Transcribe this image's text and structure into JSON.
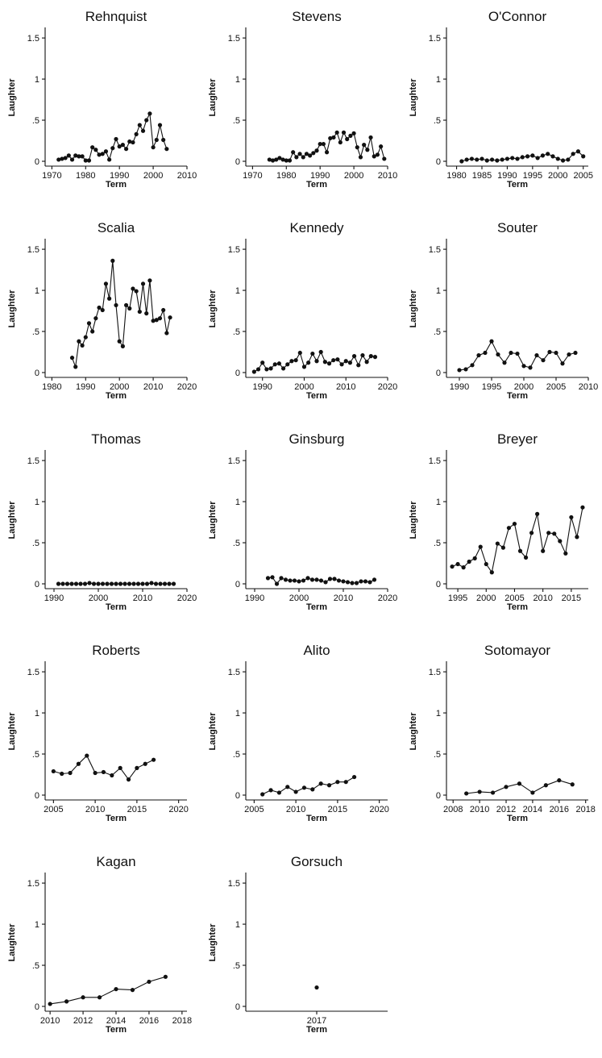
{
  "chart_data": [
    {
      "type": "line",
      "title": "Rehnquist",
      "xlabel": "Term",
      "ylabel": "Laughter",
      "xlim": [
        1968,
        2010
      ],
      "ylim": [
        0,
        1.55
      ],
      "xticks": [
        1970,
        1980,
        1990,
        2000,
        2010
      ],
      "yticks": [
        0,
        0.5,
        1,
        1.5
      ],
      "ytick_labels": [
        "0",
        ".5",
        "1",
        "1.5"
      ],
      "x": [
        1972,
        1973,
        1974,
        1975,
        1976,
        1977,
        1978,
        1979,
        1980,
        1981,
        1982,
        1983,
        1984,
        1985,
        1986,
        1987,
        1988,
        1989,
        1990,
        1991,
        1992,
        1993,
        1994,
        1995,
        1996,
        1997,
        1998,
        1999,
        2000,
        2001,
        2002,
        2003,
        2004
      ],
      "y": [
        0.02,
        0.03,
        0.04,
        0.07,
        0.02,
        0.07,
        0.06,
        0.06,
        0.01,
        0.01,
        0.17,
        0.14,
        0.08,
        0.09,
        0.12,
        0.02,
        0.16,
        0.27,
        0.18,
        0.2,
        0.15,
        0.24,
        0.23,
        0.33,
        0.44,
        0.37,
        0.5,
        0.58,
        0.17,
        0.26,
        0.44,
        0.26,
        0.15
      ]
    },
    {
      "type": "line",
      "title": "Stevens",
      "xlabel": "Term",
      "ylabel": "Laughter",
      "xlim": [
        1968,
        2010
      ],
      "ylim": [
        0,
        1.55
      ],
      "xticks": [
        1970,
        1980,
        1990,
        2000,
        2010
      ],
      "yticks": [
        0,
        0.5,
        1,
        1.5
      ],
      "ytick_labels": [
        "0",
        ".5",
        "1",
        "1.5"
      ],
      "x": [
        1975,
        1976,
        1977,
        1978,
        1979,
        1980,
        1981,
        1982,
        1983,
        1984,
        1985,
        1986,
        1987,
        1988,
        1989,
        1990,
        1991,
        1992,
        1993,
        1994,
        1995,
        1996,
        1997,
        1998,
        1999,
        2000,
        2001,
        2002,
        2003,
        2004,
        2005,
        2006,
        2007,
        2008,
        2009
      ],
      "y": [
        0.02,
        0.01,
        0.02,
        0.04,
        0.02,
        0.01,
        0.01,
        0.11,
        0.05,
        0.09,
        0.05,
        0.09,
        0.07,
        0.1,
        0.13,
        0.21,
        0.21,
        0.11,
        0.28,
        0.29,
        0.35,
        0.23,
        0.35,
        0.27,
        0.31,
        0.34,
        0.17,
        0.05,
        0.2,
        0.14,
        0.29,
        0.06,
        0.08,
        0.18,
        0.03
      ]
    },
    {
      "type": "line",
      "title": "O'Connor",
      "xlabel": "Term",
      "ylabel": "Laughter",
      "xlim": [
        1978,
        2006
      ],
      "ylim": [
        0,
        1.55
      ],
      "xticks": [
        1980,
        1985,
        1990,
        1995,
        2000,
        2005
      ],
      "yticks": [
        0,
        0.5,
        1,
        1.5
      ],
      "ytick_labels": [
        "0",
        ".5",
        "1",
        "1.5"
      ],
      "x": [
        1981,
        1982,
        1983,
        1984,
        1985,
        1986,
        1987,
        1988,
        1989,
        1990,
        1991,
        1992,
        1993,
        1994,
        1995,
        1996,
        1997,
        1998,
        1999,
        2000,
        2001,
        2002,
        2003,
        2004,
        2005
      ],
      "y": [
        0.0,
        0.02,
        0.03,
        0.02,
        0.03,
        0.01,
        0.02,
        0.01,
        0.02,
        0.03,
        0.04,
        0.03,
        0.05,
        0.06,
        0.07,
        0.04,
        0.07,
        0.09,
        0.06,
        0.03,
        0.01,
        0.02,
        0.09,
        0.12,
        0.06
      ]
    },
    {
      "type": "line",
      "title": "Scalia",
      "xlabel": "Term",
      "ylabel": "Laughter",
      "xlim": [
        1978,
        2020
      ],
      "ylim": [
        0,
        1.55
      ],
      "xticks": [
        1980,
        1990,
        2000,
        2010,
        2020
      ],
      "yticks": [
        0,
        0.5,
        1,
        1.5
      ],
      "ytick_labels": [
        "0",
        ".5",
        "1",
        "1.5"
      ],
      "x": [
        1986,
        1987,
        1988,
        1989,
        1990,
        1991,
        1992,
        1993,
        1994,
        1995,
        1996,
        1997,
        1998,
        1999,
        2000,
        2001,
        2002,
        2003,
        2004,
        2005,
        2006,
        2007,
        2008,
        2009,
        2010,
        2011,
        2012,
        2013,
        2014,
        2015
      ],
      "y": [
        0.18,
        0.07,
        0.38,
        0.33,
        0.43,
        0.6,
        0.5,
        0.66,
        0.79,
        0.76,
        1.08,
        0.9,
        1.36,
        0.82,
        0.38,
        0.32,
        0.82,
        0.78,
        1.02,
        0.99,
        0.74,
        1.08,
        0.72,
        1.12,
        0.63,
        0.64,
        0.66,
        0.76,
        0.48,
        0.67
      ]
    },
    {
      "type": "line",
      "title": "Kennedy",
      "xlabel": "Term",
      "ylabel": "Laughter",
      "xlim": [
        1986,
        2020
      ],
      "ylim": [
        0,
        1.55
      ],
      "xticks": [
        1990,
        2000,
        2010,
        2020
      ],
      "yticks": [
        0,
        0.5,
        1,
        1.5
      ],
      "ytick_labels": [
        "0",
        ".5",
        "1",
        "1.5"
      ],
      "x": [
        1988,
        1989,
        1990,
        1991,
        1992,
        1993,
        1994,
        1995,
        1996,
        1997,
        1998,
        1999,
        2000,
        2001,
        2002,
        2003,
        2004,
        2005,
        2006,
        2007,
        2008,
        2009,
        2010,
        2011,
        2012,
        2013,
        2014,
        2015,
        2016,
        2017
      ],
      "y": [
        0.01,
        0.04,
        0.12,
        0.04,
        0.05,
        0.1,
        0.11,
        0.05,
        0.1,
        0.14,
        0.15,
        0.24,
        0.07,
        0.12,
        0.23,
        0.14,
        0.25,
        0.13,
        0.11,
        0.15,
        0.16,
        0.1,
        0.14,
        0.12,
        0.2,
        0.09,
        0.21,
        0.13,
        0.2,
        0.19
      ]
    },
    {
      "type": "line",
      "title": "Souter",
      "xlabel": "Term",
      "ylabel": "Laughter",
      "xlim": [
        1988,
        2010
      ],
      "ylim": [
        0,
        1.55
      ],
      "xticks": [
        1990,
        1995,
        2000,
        2005,
        2010
      ],
      "yticks": [
        0,
        0.5,
        1,
        1.5
      ],
      "ytick_labels": [
        "0",
        ".5",
        "1",
        "1.5"
      ],
      "x": [
        1990,
        1991,
        1992,
        1993,
        1994,
        1995,
        1996,
        1997,
        1998,
        1999,
        2000,
        2001,
        2002,
        2003,
        2004,
        2005,
        2006,
        2007,
        2008
      ],
      "y": [
        0.03,
        0.04,
        0.09,
        0.21,
        0.24,
        0.38,
        0.22,
        0.12,
        0.24,
        0.23,
        0.08,
        0.06,
        0.21,
        0.15,
        0.25,
        0.24,
        0.11,
        0.22,
        0.24
      ]
    },
    {
      "type": "line",
      "title": "Thomas",
      "xlabel": "Term",
      "ylabel": "Laughter",
      "xlim": [
        1988,
        2020
      ],
      "ylim": [
        0,
        1.55
      ],
      "xticks": [
        1990,
        2000,
        2010,
        2020
      ],
      "yticks": [
        0,
        0.5,
        1,
        1.5
      ],
      "ytick_labels": [
        "0",
        ".5",
        "1",
        "1.5"
      ],
      "x": [
        1991,
        1992,
        1993,
        1994,
        1995,
        1996,
        1997,
        1998,
        1999,
        2000,
        2001,
        2002,
        2003,
        2004,
        2005,
        2006,
        2007,
        2008,
        2009,
        2010,
        2011,
        2012,
        2013,
        2014,
        2015,
        2016,
        2017
      ],
      "y": [
        0.0,
        0.0,
        0.0,
        0.0,
        0.0,
        0.0,
        0.0,
        0.01,
        0.0,
        0.0,
        0.0,
        0.0,
        0.0,
        0.0,
        0.0,
        0.0,
        0.0,
        0.0,
        0.0,
        0.0,
        0.0,
        0.01,
        0.0,
        0.0,
        0.0,
        0.0,
        0.0
      ]
    },
    {
      "type": "line",
      "title": "Ginsburg",
      "xlabel": "Term",
      "ylabel": "Laughter",
      "xlim": [
        1988,
        2020
      ],
      "ylim": [
        0,
        1.55
      ],
      "xticks": [
        1990,
        2000,
        2010,
        2020
      ],
      "yticks": [
        0,
        0.5,
        1,
        1.5
      ],
      "ytick_labels": [
        "0",
        ".5",
        "1",
        "1.5"
      ],
      "x": [
        1993,
        1994,
        1995,
        1996,
        1997,
        1998,
        1999,
        2000,
        2001,
        2002,
        2003,
        2004,
        2005,
        2006,
        2007,
        2008,
        2009,
        2010,
        2011,
        2012,
        2013,
        2014,
        2015,
        2016,
        2017
      ],
      "y": [
        0.07,
        0.08,
        0.0,
        0.07,
        0.05,
        0.04,
        0.04,
        0.03,
        0.04,
        0.07,
        0.05,
        0.05,
        0.04,
        0.02,
        0.06,
        0.06,
        0.04,
        0.03,
        0.02,
        0.01,
        0.01,
        0.03,
        0.03,
        0.02,
        0.05
      ]
    },
    {
      "type": "line",
      "title": "Breyer",
      "xlabel": "Term",
      "ylabel": "Laughter",
      "xlim": [
        1993,
        2018
      ],
      "ylim": [
        0,
        1.55
      ],
      "xticks": [
        1995,
        2000,
        2005,
        2010,
        2015
      ],
      "yticks": [
        0,
        0.5,
        1,
        1.5
      ],
      "ytick_labels": [
        "0",
        ".5",
        "1",
        "1.5"
      ],
      "x": [
        1994,
        1995,
        1996,
        1997,
        1998,
        1999,
        2000,
        2001,
        2002,
        2003,
        2004,
        2005,
        2006,
        2007,
        2008,
        2009,
        2010,
        2011,
        2012,
        2013,
        2014,
        2015,
        2016,
        2017
      ],
      "y": [
        0.21,
        0.24,
        0.2,
        0.27,
        0.31,
        0.45,
        0.24,
        0.14,
        0.49,
        0.44,
        0.68,
        0.73,
        0.4,
        0.32,
        0.62,
        0.85,
        0.4,
        0.62,
        0.61,
        0.52,
        0.37,
        0.81,
        0.57,
        0.93
      ]
    },
    {
      "type": "line",
      "title": "Roberts",
      "xlabel": "Term",
      "ylabel": "Laughter",
      "xlim": [
        2004,
        2021
      ],
      "ylim": [
        0,
        1.55
      ],
      "xticks": [
        2005,
        2010,
        2015,
        2020
      ],
      "yticks": [
        0,
        0.5,
        1,
        1.5
      ],
      "ytick_labels": [
        "0",
        ".5",
        "1",
        "1.5"
      ],
      "x": [
        2005,
        2006,
        2007,
        2008,
        2009,
        2010,
        2011,
        2012,
        2013,
        2014,
        2015,
        2016,
        2017
      ],
      "y": [
        0.29,
        0.26,
        0.27,
        0.38,
        0.48,
        0.27,
        0.28,
        0.24,
        0.33,
        0.19,
        0.33,
        0.38,
        0.43
      ]
    },
    {
      "type": "line",
      "title": "Alito",
      "xlabel": "Term",
      "ylabel": "Laughter",
      "xlim": [
        2004,
        2021
      ],
      "ylim": [
        0,
        1.55
      ],
      "xticks": [
        2005,
        2010,
        2015,
        2020
      ],
      "yticks": [
        0,
        0.5,
        1,
        1.5
      ],
      "ytick_labels": [
        "0",
        ".5",
        "1",
        "1.5"
      ],
      "x": [
        2006,
        2007,
        2008,
        2009,
        2010,
        2011,
        2012,
        2013,
        2014,
        2015,
        2016,
        2017
      ],
      "y": [
        0.01,
        0.06,
        0.03,
        0.1,
        0.04,
        0.09,
        0.07,
        0.14,
        0.12,
        0.16,
        0.16,
        0.22
      ]
    },
    {
      "type": "line",
      "title": "Sotomayor",
      "xlabel": "Term",
      "ylabel": "Laughter",
      "xlim": [
        2007.5,
        2018.2
      ],
      "ylim": [
        0,
        1.55
      ],
      "xticks": [
        2008,
        2010,
        2012,
        2014,
        2016,
        2018
      ],
      "yticks": [
        0,
        0.5,
        1,
        1.5
      ],
      "ytick_labels": [
        "0",
        ".5",
        "1",
        "1.5"
      ],
      "x": [
        2009,
        2010,
        2011,
        2012,
        2013,
        2014,
        2015,
        2016,
        2017
      ],
      "y": [
        0.02,
        0.04,
        0.03,
        0.1,
        0.14,
        0.03,
        0.12,
        0.18,
        0.13
      ]
    },
    {
      "type": "line",
      "title": "Kagan",
      "xlabel": "Term",
      "ylabel": "Laughter",
      "xlim": [
        2009.7,
        2018.3
      ],
      "ylim": [
        0,
        1.55
      ],
      "xticks": [
        2010,
        2012,
        2014,
        2016,
        2018
      ],
      "yticks": [
        0,
        0.5,
        1,
        1.5
      ],
      "ytick_labels": [
        "0",
        ".5",
        "1",
        "1.5"
      ],
      "x": [
        2010,
        2011,
        2012,
        2013,
        2014,
        2015,
        2016,
        2017
      ],
      "y": [
        0.03,
        0.06,
        0.11,
        0.11,
        0.21,
        0.2,
        0.3,
        0.36
      ]
    },
    {
      "type": "scatter",
      "title": "Gorsuch",
      "xlabel": "Term",
      "ylabel": "Laughter",
      "xlim": [
        2016,
        2018
      ],
      "ylim": [
        0,
        1.55
      ],
      "xticks": [
        2017
      ],
      "yticks": [
        0,
        0.5,
        1,
        1.5
      ],
      "ytick_labels": [
        "0",
        ".5",
        "1",
        "1.5"
      ],
      "x": [
        2017
      ],
      "y": [
        0.23
      ]
    }
  ]
}
